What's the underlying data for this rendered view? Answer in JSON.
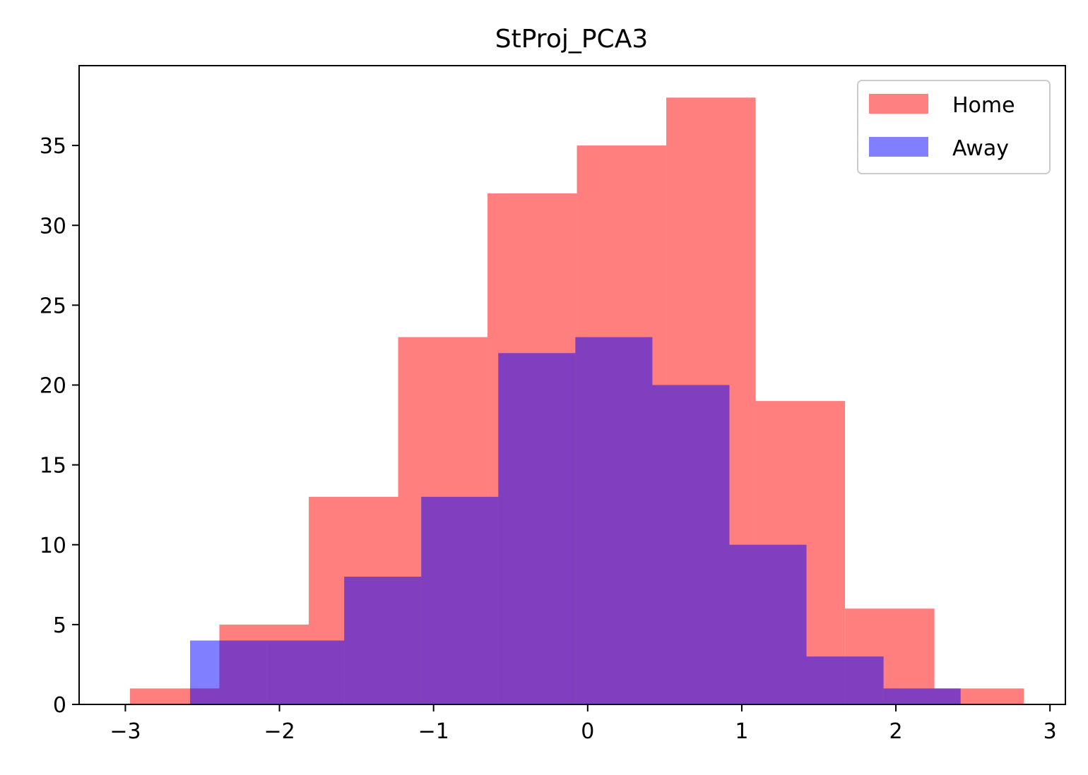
{
  "chart_data": {
    "type": "bar",
    "title": "StProj_PCA3",
    "xlabel": "",
    "ylabel": "",
    "xlim": [
      -3.3,
      3.1
    ],
    "ylim": [
      0,
      40
    ],
    "xticks": [
      -3,
      -2,
      -1,
      0,
      1,
      2,
      3
    ],
    "xtick_labels": [
      "−3",
      "−2",
      "−1",
      "0",
      "1",
      "2",
      "3"
    ],
    "yticks": [
      0,
      5,
      10,
      15,
      20,
      25,
      30,
      35
    ],
    "ytick_labels": [
      "0",
      "5",
      "10",
      "15",
      "20",
      "25",
      "30",
      "35"
    ],
    "grid": false,
    "legend_position": "top-right",
    "series": [
      {
        "name": "Home",
        "color": "#ff8080",
        "bin_edges": [
          -2.97,
          -2.39,
          -1.81,
          -1.23,
          -0.65,
          -0.07,
          0.51,
          1.09,
          1.67,
          2.25,
          2.83
        ],
        "counts": [
          1,
          5,
          13,
          23,
          32,
          35,
          38,
          19,
          6,
          1
        ]
      },
      {
        "name": "Away",
        "color": "#8080ff",
        "bin_edges": [
          -2.58,
          -2.08,
          -1.58,
          -1.08,
          -0.58,
          -0.08,
          0.42,
          0.92,
          1.42,
          1.92,
          2.42
        ],
        "counts": [
          4,
          4,
          8,
          13,
          22,
          23,
          20,
          10,
          3,
          1
        ]
      }
    ]
  }
}
